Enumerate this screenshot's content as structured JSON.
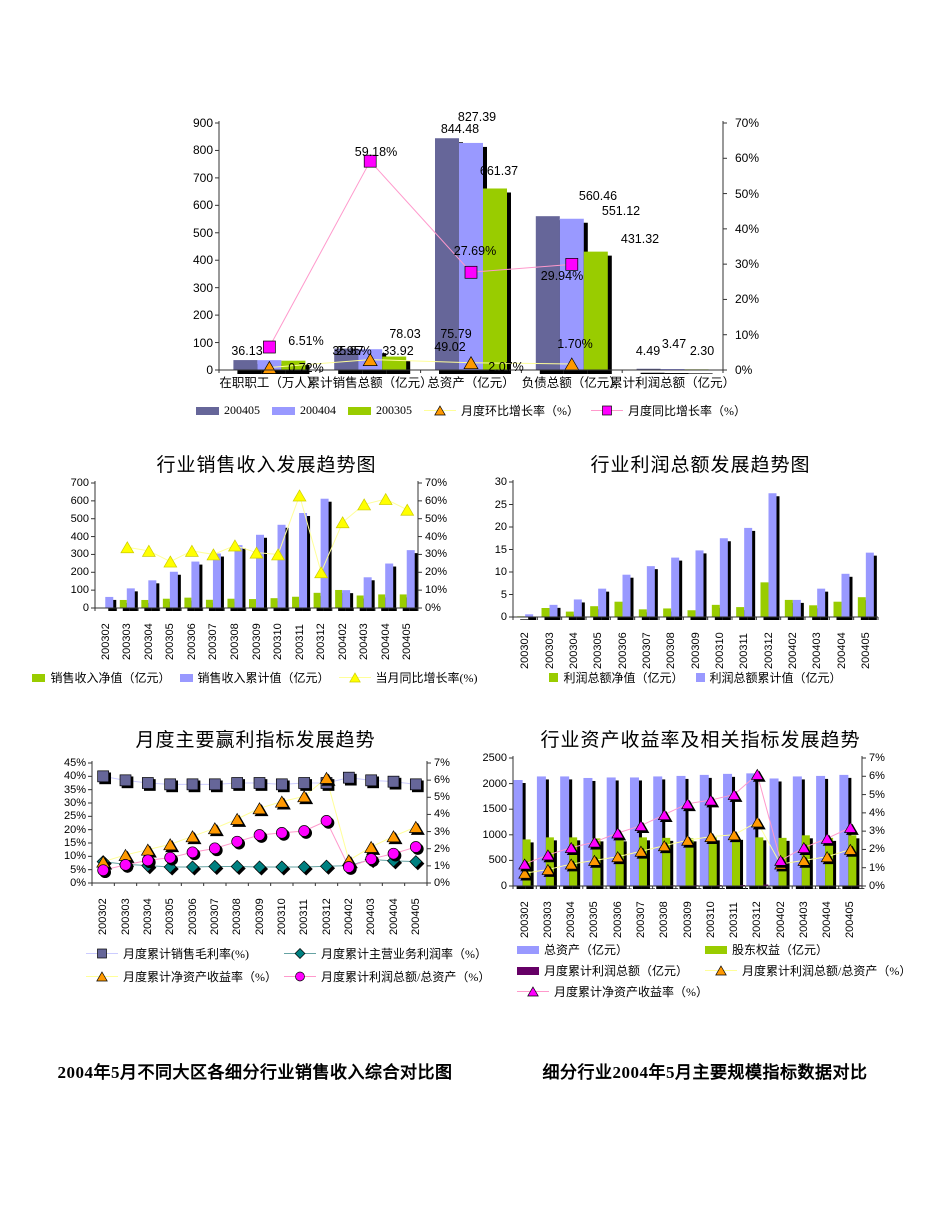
{
  "captions": {
    "left": "2004年5月不同大区各细分行业销售收入综合对比图",
    "right": "细分行业2004年5月主要规模指标数据对比"
  },
  "chart_data": [
    {
      "id": "top_summary",
      "type": "bar",
      "title": "",
      "categories": [
        "在职职工（万人）",
        "累计销售总额（亿元）",
        "总资产（亿元）",
        "负债总额（亿元）",
        "累计利润总额（亿元）"
      ],
      "y_left": {
        "min": 0,
        "max": 900,
        "ticks": [
          "0",
          "100",
          "200",
          "300",
          "400",
          "500",
          "600",
          "700",
          "800",
          "900"
        ]
      },
      "y_right": {
        "min": 0,
        "max": 70,
        "ticks": [
          "0%",
          "10%",
          "20%",
          "30%",
          "40%",
          "50%",
          "60%",
          "70%"
        ]
      },
      "legend_position": "bottom",
      "grid": false,
      "series": [
        {
          "name": "200405",
          "kind": "bar",
          "color": "#666699",
          "values": [
            36.13,
            78.03,
            844.48,
            560.46,
            4.49
          ],
          "labels": [
            "36.13",
            "78.03",
            "844.48",
            "560.46",
            "4.49"
          ]
        },
        {
          "name": "200404",
          "kind": "bar",
          "color": "#9999FF",
          "values": [
            35.87,
            75.79,
            827.39,
            551.12,
            3.47
          ],
          "labels": [
            "35.87",
            "75.79",
            "827.39",
            "551.12",
            "3.47"
          ]
        },
        {
          "name": "200305",
          "kind": "bar",
          "color": "#99CC00",
          "values": [
            33.92,
            49.02,
            661.37,
            431.32,
            2.3
          ],
          "labels": [
            "33.92",
            "49.02",
            "661.37",
            "431.32",
            "2.30"
          ]
        },
        {
          "name": "月度环比增长率（%）",
          "kind": "line",
          "marker": "triangle",
          "axis": "right",
          "color": "#FF9900",
          "line_color": "#FFFF99",
          "values": [
            0.72,
            2.95,
            2.07,
            1.7,
            null
          ],
          "labels": [
            "0.72%",
            "2.95%",
            "2.07%",
            "1.70%",
            null
          ]
        },
        {
          "name": "月度同比增长率（%）",
          "kind": "line",
          "marker": "square",
          "axis": "right",
          "color": "#FF00FF",
          "line_color": "#FF99CC",
          "values": [
            6.51,
            59.18,
            27.69,
            29.94,
            null
          ],
          "labels": [
            "6.51%",
            "59.18%",
            "27.69%",
            "29.94%",
            null
          ]
        }
      ]
    },
    {
      "id": "sales_trend",
      "type": "bar",
      "title": "行业销售收入发展趋势图",
      "categories": [
        "200302",
        "200303",
        "200304",
        "200305",
        "200306",
        "200307",
        "200308",
        "200309",
        "200310",
        "200311",
        "200312",
        "200402",
        "200403",
        "200404",
        "200405"
      ],
      "y_left": {
        "min": 0,
        "max": 700,
        "ticks": [
          "0",
          "100",
          "200",
          "300",
          "400",
          "500",
          "600",
          "700"
        ]
      },
      "y_right": {
        "min": 0,
        "max": 70,
        "ticks": [
          "0%",
          "10%",
          "20%",
          "30%",
          "40%",
          "50%",
          "60%",
          "70%"
        ]
      },
      "legend_position": "bottom",
      "grid": false,
      "series": [
        {
          "name": "销售收入净值（亿元）",
          "kind": "bar",
          "color": "#99CC00",
          "values": [
            0,
            45,
            45,
            52,
            58,
            46,
            52,
            50,
            55,
            63,
            85,
            101,
            70,
            76,
            76
          ]
        },
        {
          "name": "销售收入累计值（亿元）",
          "kind": "bar",
          "color": "#9999FF",
          "values": [
            62,
            110,
            155,
            203,
            260,
            305,
            352,
            410,
            466,
            532,
            612,
            100,
            172,
            249,
            324
          ]
        },
        {
          "name": "当月同比增长率(%)",
          "kind": "line",
          "marker": "triangle",
          "axis": "right",
          "color": "#FFFF00",
          "marker_stroke": "#CCCC00",
          "line_color": "#FFFF99",
          "values": [
            null,
            34,
            32,
            26,
            32,
            30,
            35,
            31,
            30,
            63,
            20,
            48,
            58,
            61,
            55
          ]
        }
      ]
    },
    {
      "id": "profit_trend",
      "type": "bar",
      "title": "行业利润总额发展趋势图",
      "categories": [
        "200302",
        "200303",
        "200304",
        "200305",
        "200306",
        "200307",
        "200308",
        "200309",
        "200310",
        "200311",
        "200312",
        "200402",
        "200403",
        "200404",
        "200405"
      ],
      "y_left": {
        "min": 0,
        "max": 30,
        "ticks": [
          "0",
          "5",
          "10",
          "15",
          "20",
          "25",
          "30"
        ]
      },
      "y_right": null,
      "legend_position": "bottom",
      "grid": false,
      "series": [
        {
          "name": "利润总额净值（亿元）",
          "kind": "bar",
          "color": "#99CC00",
          "values": [
            0.15,
            2.0,
            1.2,
            2.4,
            3.4,
            1.7,
            1.9,
            1.5,
            2.7,
            2.2,
            7.7,
            3.8,
            2.6,
            3.4,
            4.4
          ]
        },
        {
          "name": "利润总额累计值（亿元）",
          "kind": "bar",
          "color": "#9999FF",
          "values": [
            0.6,
            2.7,
            3.9,
            6.3,
            9.4,
            11.3,
            13.2,
            14.8,
            17.5,
            19.8,
            27.5,
            3.8,
            6.3,
            9.6,
            14.3
          ]
        }
      ]
    },
    {
      "id": "profitability_trend",
      "type": "line",
      "title": "月度主要赢利指标发展趋势",
      "categories": [
        "200302",
        "200303",
        "200304",
        "200305",
        "200306",
        "200307",
        "200308",
        "200309",
        "200310",
        "200311",
        "200312",
        "200402",
        "200403",
        "200404",
        "200405"
      ],
      "y_left": {
        "min": 0,
        "max": 45,
        "ticks": [
          "0%",
          "5%",
          "10%",
          "15%",
          "20%",
          "25%",
          "30%",
          "35%",
          "40%",
          "45%"
        ]
      },
      "y_right": {
        "min": 0,
        "max": 7,
        "ticks": [
          "0%",
          "1%",
          "2%",
          "3%",
          "4%",
          "5%",
          "6%",
          "7%"
        ]
      },
      "legend_position": "bottom",
      "grid": false,
      "series": [
        {
          "name": "月度累计销售毛利率(%)",
          "kind": "line",
          "marker": "square",
          "axis": "left",
          "color": "#666699",
          "line_color": "#CCCCFF",
          "values": [
            40,
            38.5,
            37.5,
            37,
            37,
            37,
            37.5,
            37.5,
            37,
            37.5,
            37.5,
            39.5,
            38.5,
            38,
            37
          ]
        },
        {
          "name": "月度累计主营业务利润率（%）",
          "kind": "line",
          "marker": "diamond",
          "axis": "left",
          "color": "#008080",
          "line_color": "#66A3A3",
          "values": [
            8,
            7,
            6.5,
            6,
            6,
            6.2,
            6.2,
            6,
            6,
            6,
            6.3,
            6.5,
            8.8,
            8.3,
            8
          ]
        },
        {
          "name": "月度累计净资产收益率（%）",
          "kind": "line",
          "marker": "triangle",
          "axis": "left",
          "color": "#FF9900",
          "line_color": "#FFFF99",
          "values": [
            8,
            10.5,
            12.5,
            14.5,
            17.5,
            20.5,
            24,
            28,
            30.5,
            32.5,
            39.4,
            8.5,
            13.5,
            17.5,
            21
          ]
        },
        {
          "name": "月度累计利润总额/总资产（%）",
          "kind": "line",
          "marker": "circle",
          "axis": "left",
          "color": "#FF00FF",
          "line_color": "#FF99CC",
          "values": [
            4.8,
            6.8,
            8.5,
            9.5,
            11.5,
            13,
            15.5,
            18,
            18.8,
            19.5,
            23.3,
            6,
            9,
            11,
            13.5
          ]
        }
      ]
    },
    {
      "id": "asset_return",
      "type": "bar",
      "title": "行业资产收益率及相关指标发展趋势",
      "categories": [
        "200302",
        "200303",
        "200304",
        "200305",
        "200306",
        "200307",
        "200308",
        "200309",
        "200310",
        "200311",
        "200312",
        "200402",
        "200403",
        "200404",
        "200405"
      ],
      "y_left": {
        "min": 0,
        "max": 2500,
        "ticks": [
          "0",
          "500",
          "1000",
          "1500",
          "2000",
          "2500"
        ]
      },
      "y_right": {
        "min": 0,
        "max": 7,
        "ticks": [
          "0%",
          "1%",
          "2%",
          "3%",
          "4%",
          "5%",
          "6%",
          "7%"
        ]
      },
      "legend_position": "bottom",
      "grid": false,
      "series": [
        {
          "name": "总资产（亿元）",
          "kind": "bar",
          "color": "#9999FF",
          "values": [
            2070,
            2140,
            2140,
            2110,
            2120,
            2120,
            2140,
            2150,
            2170,
            2190,
            2200,
            2100,
            2140,
            2150,
            2170
          ]
        },
        {
          "name": "股东权益（亿元）",
          "kind": "bar",
          "color": "#99CC00",
          "values": [
            910,
            950,
            950,
            930,
            930,
            950,
            940,
            930,
            950,
            960,
            950,
            940,
            990,
            940,
            990
          ]
        },
        {
          "name": "月度累计利润总额（亿元）",
          "kind": "bar",
          "color": "#660066",
          "values": [
            0.6,
            2.7,
            3.9,
            6.3,
            9.4,
            11.3,
            13.2,
            14.8,
            17.5,
            19.8,
            27.5,
            3.8,
            6.3,
            9.6,
            14.3
          ]
        },
        {
          "name": "月度累计利润总额/总资产（%）",
          "kind": "line",
          "marker": "triangle",
          "axis": "right",
          "color": "#FF9900",
          "line_color": "#FFFF99",
          "values": [
            0.7,
            0.9,
            1.2,
            1.4,
            1.6,
            1.9,
            2.2,
            2.5,
            2.7,
            2.8,
            3.5,
            1.2,
            1.4,
            1.6,
            2.0
          ]
        },
        {
          "name": "月度累计净资产收益率（%）",
          "kind": "line",
          "marker": "triangle",
          "axis": "right",
          "color": "#FF00FF",
          "line_color": "#FF99CC",
          "values": [
            1.2,
            1.7,
            2.1,
            2.4,
            2.9,
            3.3,
            3.9,
            4.5,
            4.7,
            5.0,
            6.1,
            1.4,
            2.1,
            2.6,
            3.2
          ]
        }
      ]
    }
  ]
}
